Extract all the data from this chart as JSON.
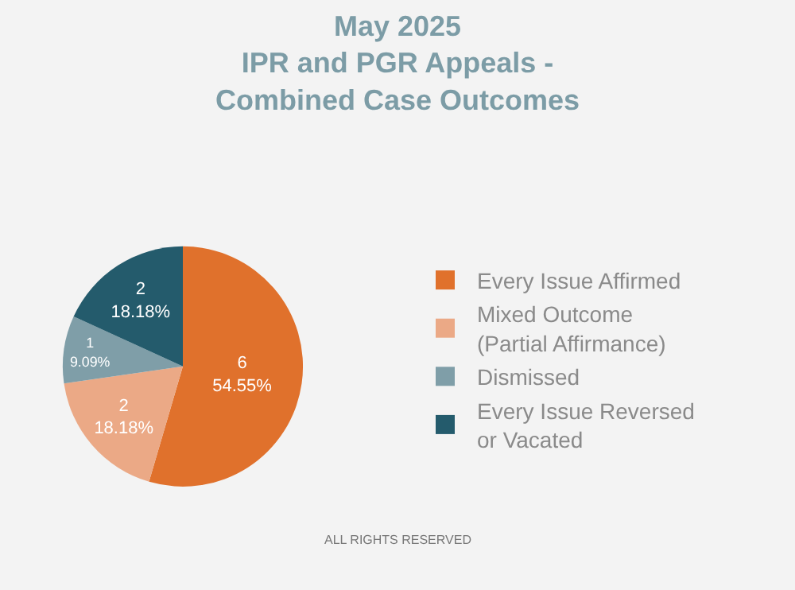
{
  "chart_data": {
    "type": "pie",
    "title": "May 2025\nIPR and PGR Appeals -\nCombined Case Outcomes",
    "categories": [
      "Every Issue Affirmed",
      "Mixed Outcome\n(Partial Affirmance)",
      "Dismissed",
      "Every Issue Reversed\nor Vacated"
    ],
    "values": [
      6,
      2,
      1,
      2
    ],
    "value_labels": [
      "6\n54.55%",
      "2\n18.18%",
      "1\n9.09%",
      "2\n18.18%"
    ],
    "colors": [
      "#e0712c",
      "#eba986",
      "#7f9ea8",
      "#245b6c"
    ],
    "legend": "right",
    "annotations": [
      "ALL RIGHTS RESERVED"
    ]
  }
}
